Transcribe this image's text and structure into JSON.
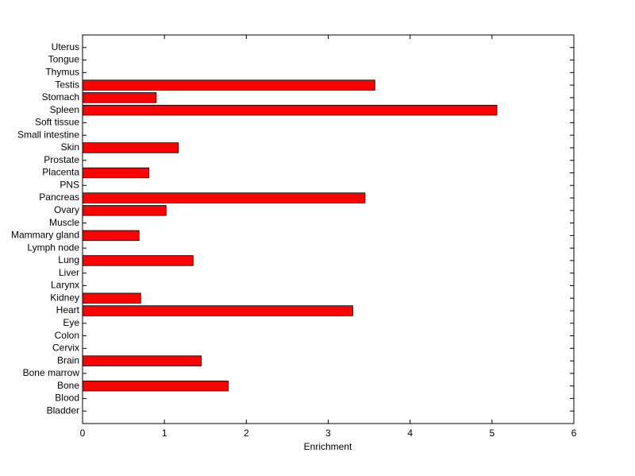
{
  "chart_data": {
    "type": "bar",
    "orientation": "horizontal",
    "x_label": "Enrichment",
    "categories": [
      "Bladder",
      "Blood",
      "Bone",
      "Bone marrow",
      "Brain",
      "Cervix",
      "Colon",
      "Eye",
      "Heart",
      "Kidney",
      "Larynx",
      "Liver",
      "Lung",
      "Lymph node",
      "Mammary gland",
      "Muscle",
      "Ovary",
      "Pancreas",
      "PNS",
      "Placenta",
      "Prostate",
      "Skin",
      "Small intestine",
      "Soft tissue",
      "Spleen",
      "Stomach",
      "Testis",
      "Thymus",
      "Tongue",
      "Uterus"
    ],
    "values": [
      0,
      0,
      1.78,
      0,
      1.45,
      0,
      0,
      0,
      3.3,
      0.71,
      0,
      0,
      1.35,
      0,
      0.69,
      0,
      1.02,
      3.45,
      0,
      0.81,
      0,
      1.17,
      0,
      0,
      5.06,
      0.9,
      3.57,
      0,
      0,
      0
    ],
    "color": "#ff0000",
    "xlim": [
      0,
      6
    ],
    "xticks": [
      0,
      1,
      2,
      3,
      4,
      5,
      6
    ],
    "grid": false
  }
}
